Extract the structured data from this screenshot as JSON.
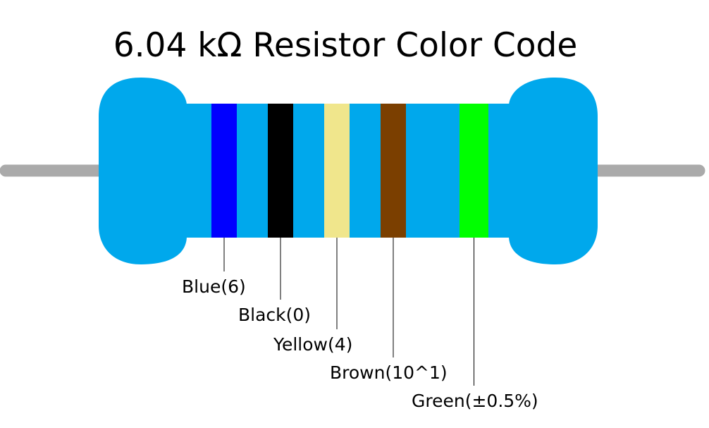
{
  "title": "6.04 kΩ Resistor Color Code",
  "bands": [
    {
      "label": "Blue(6)",
      "color": "#0000ff"
    },
    {
      "label": "Black(0)",
      "color": "#000000"
    },
    {
      "label": "Yellow(4)",
      "color": "#f0e68c"
    },
    {
      "label": "Brown(10^1)",
      "color": "#7b3f00"
    },
    {
      "label": "Green(±0.5%)",
      "color": "#00ff00"
    }
  ],
  "body_color": "#00a8ec"
}
